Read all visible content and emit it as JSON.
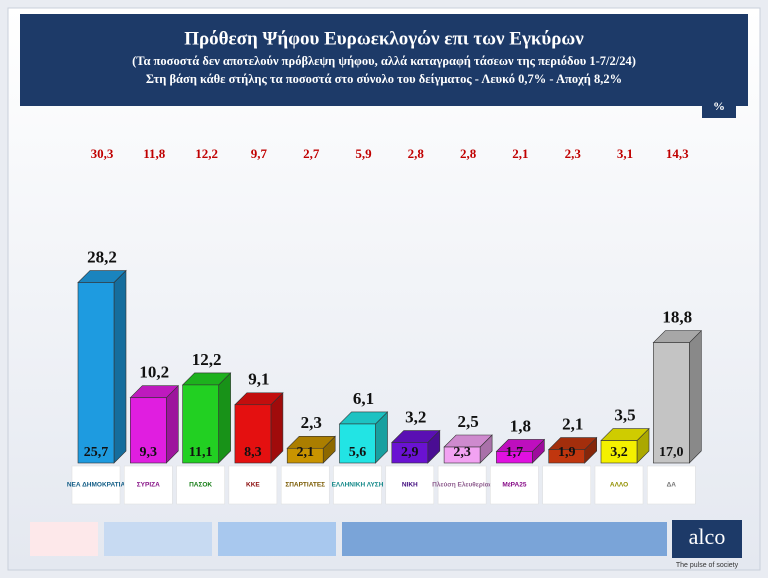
{
  "chart_data": {
    "type": "bar3d",
    "title": "Πρόθεση Ψήφου Ευρωεκλογών επι των Εγκύρων",
    "subtitle": "(Τα ποσοστά δεν αποτελούν πρόβλεψη ψήφου, αλλά καταγραφή τάσεων της περιόδου  1-7/2/24)",
    "note": "Στη βάση κάθε στήλης τα ποσοστά στο σύνολο του δείγματος - Λευκό 0,7% - Αποχή 8,2%",
    "unit": "%",
    "categories": [
      "ΝΕΑ ΔΗΜΟΚΡΑΤΙΑ",
      "ΣΥΡΙΖΑ",
      "ΠΑΣΟΚ",
      "ΚΚΕ",
      "ΣΠΑΡΤΙΑΤΕΣ",
      "ΕΛΛΗΝΙΚΗ ΛΥΣΗ",
      "ΝΙΚΗ",
      "Πλεύση Ελευθερίας",
      "ΜέΡΑ25",
      null,
      "ΑΛΛΟ",
      "ΔΑ"
    ],
    "colors": [
      "#1e9be0",
      "#e01ee0",
      "#22d022",
      "#e41010",
      "#c99400",
      "#22e4e4",
      "#6a12d2",
      "#f2a2f2",
      "#e010e0",
      "#c0360e",
      "#f4f000",
      "#c4c4c4"
    ],
    "ylim": [
      0,
      30
    ],
    "series": [
      {
        "values": [
          28.2,
          10.2,
          12.2,
          9.1,
          2.3,
          6.1,
          3.2,
          2.5,
          1.8,
          2.1,
          3.5,
          18.8
        ],
        "value_labels": [
          "28,2",
          "10,2",
          "12,2",
          "9,1",
          "2,3",
          "6,1",
          "3,2",
          "2,5",
          "1,8",
          "2,1",
          "3,5",
          "18,8"
        ]
      },
      {
        "values": [
          25.7,
          9.3,
          11.1,
          8.3,
          2.1,
          5.6,
          2.9,
          2.3,
          1.7,
          1.9,
          3.2,
          17.0
        ],
        "value_labels": [
          "25,7",
          "9,3",
          "11,1",
          "8,3",
          "2,1",
          "5,6",
          "2,9",
          "2,3",
          "1,7",
          "1,9",
          "3,2",
          "17,0"
        ]
      },
      {
        "values": [
          30.3,
          11.8,
          12.2,
          9.7,
          2.7,
          5.9,
          2.8,
          2.8,
          2.1,
          2.3,
          3.1,
          14.3
        ],
        "value_labels": [
          "30,3",
          "11,8",
          "12,2",
          "9,7",
          "2,7",
          "5,9",
          "2,8",
          "2,8",
          "2,1",
          "2,3",
          "3,1",
          "14,3"
        ]
      }
    ],
    "footer": {
      "brand": "alco",
      "tagline": "The pulse of society"
    }
  }
}
